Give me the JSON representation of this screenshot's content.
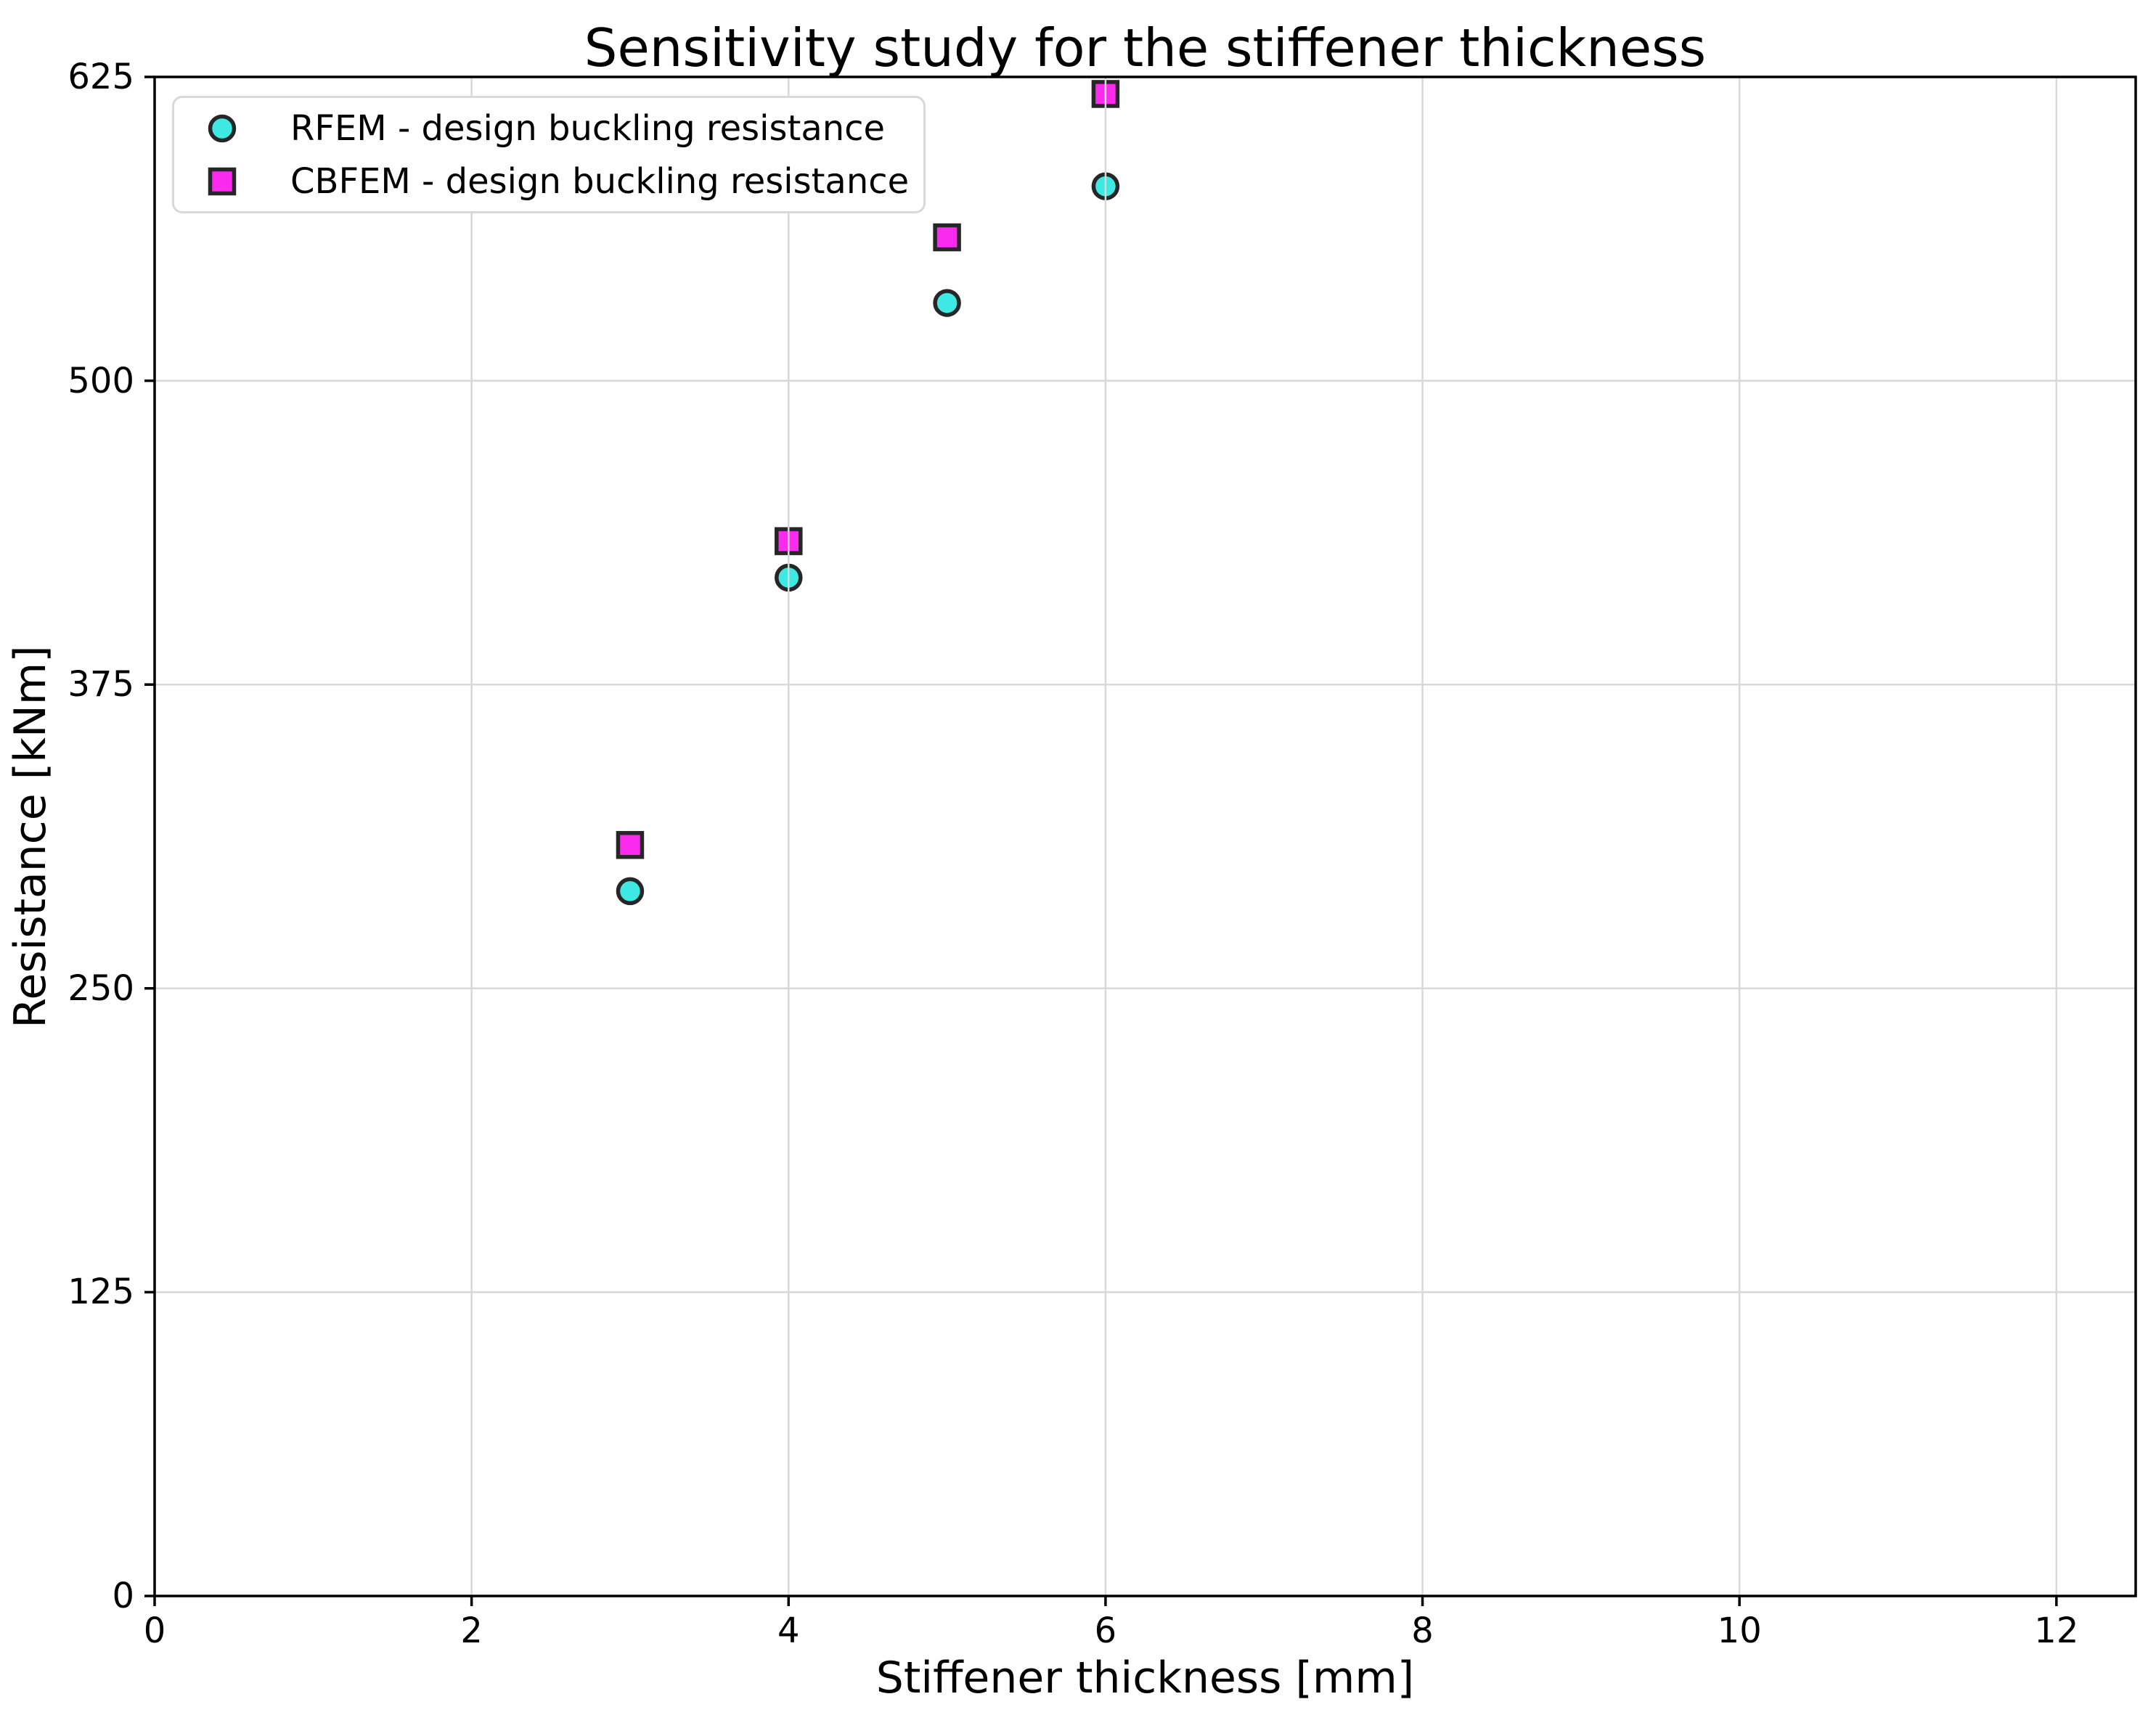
{
  "chart_data": {
    "type": "scatter",
    "title": "Sensitivity study for the stiffener thickness",
    "xlabel": "Stiffener thickness [mm]",
    "ylabel": "Resistance [kNm]",
    "xlim": [
      0,
      12.5
    ],
    "ylim": [
      0,
      625
    ],
    "xticks": [
      0,
      2,
      4,
      6,
      8,
      10,
      12
    ],
    "yticks": [
      0,
      125,
      250,
      375,
      500,
      625
    ],
    "grid": true,
    "grid_color": "#d8d8d8",
    "axis_color": "#000000",
    "marker_edge_color": "#262626",
    "legend_position": "upper-left",
    "series": [
      {
        "name": "RFEM - design buckling resistance",
        "marker": "circle",
        "color": "#3de9e2",
        "x": [
          3,
          4,
          5,
          6
        ],
        "y": [
          290,
          419,
          532,
          580
        ]
      },
      {
        "name": "CBFEM - design buckling resistance",
        "marker": "square",
        "color": "#fa2bef",
        "x": [
          3,
          4,
          5,
          6
        ],
        "y": [
          309,
          434,
          559,
          618
        ]
      }
    ]
  }
}
